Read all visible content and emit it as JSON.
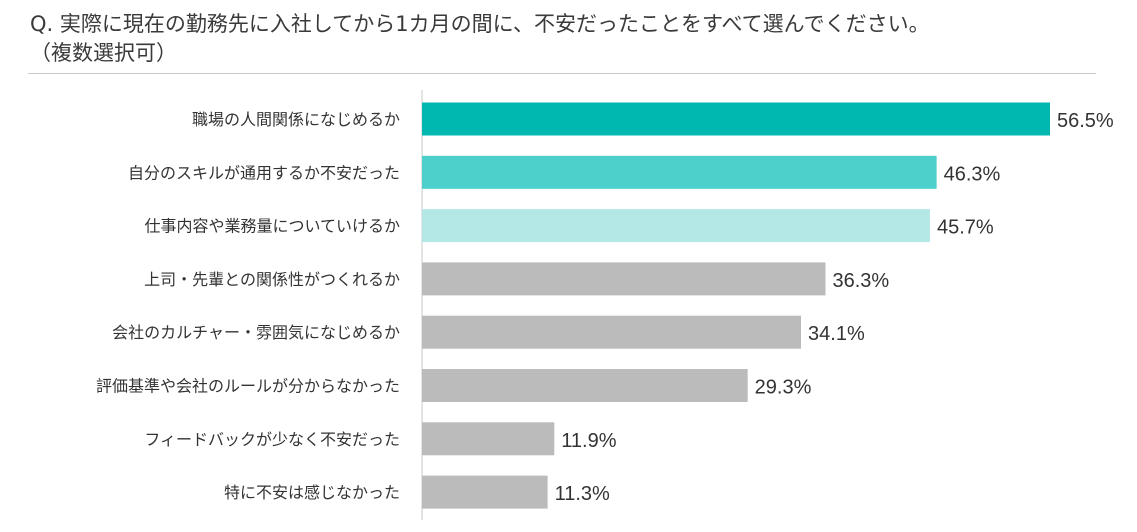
{
  "question": {
    "line1": "Q. 実際に現在の勤務先に入社してから1カ月の間に、不安だったことをすべて選んでください。",
    "line2": "（複数選択可）"
  },
  "chart_data": {
    "type": "bar",
    "orientation": "horizontal",
    "categories": [
      "職場の人間関係になじめるか",
      "自分のスキルが通用するか不安だった",
      "仕事内容や業務量についていけるか",
      "上司・先輩との関係性がつくれるか",
      "会社のカルチャー・雰囲気になじめるか",
      "評価基準や会社のルールが分からなかった",
      "フィードバックが少なく不安だった",
      "特に不安は感じなかった"
    ],
    "values": [
      56.5,
      46.3,
      45.7,
      36.3,
      34.1,
      29.3,
      11.9,
      11.3
    ],
    "value_labels": [
      "56.5%",
      "46.3%",
      "45.7%",
      "36.3%",
      "34.1%",
      "29.3%",
      "11.9%",
      "11.3%"
    ],
    "bar_colors": [
      "#00b8b0",
      "#4dd0cb",
      "#b4e8e6",
      "#bbbbbb",
      "#bbbbbb",
      "#bbbbbb",
      "#bbbbbb",
      "#bbbbbb"
    ],
    "title": "",
    "xlabel": "",
    "ylabel": "",
    "xlim": [
      0,
      60
    ],
    "grid": false,
    "legend": "none"
  }
}
